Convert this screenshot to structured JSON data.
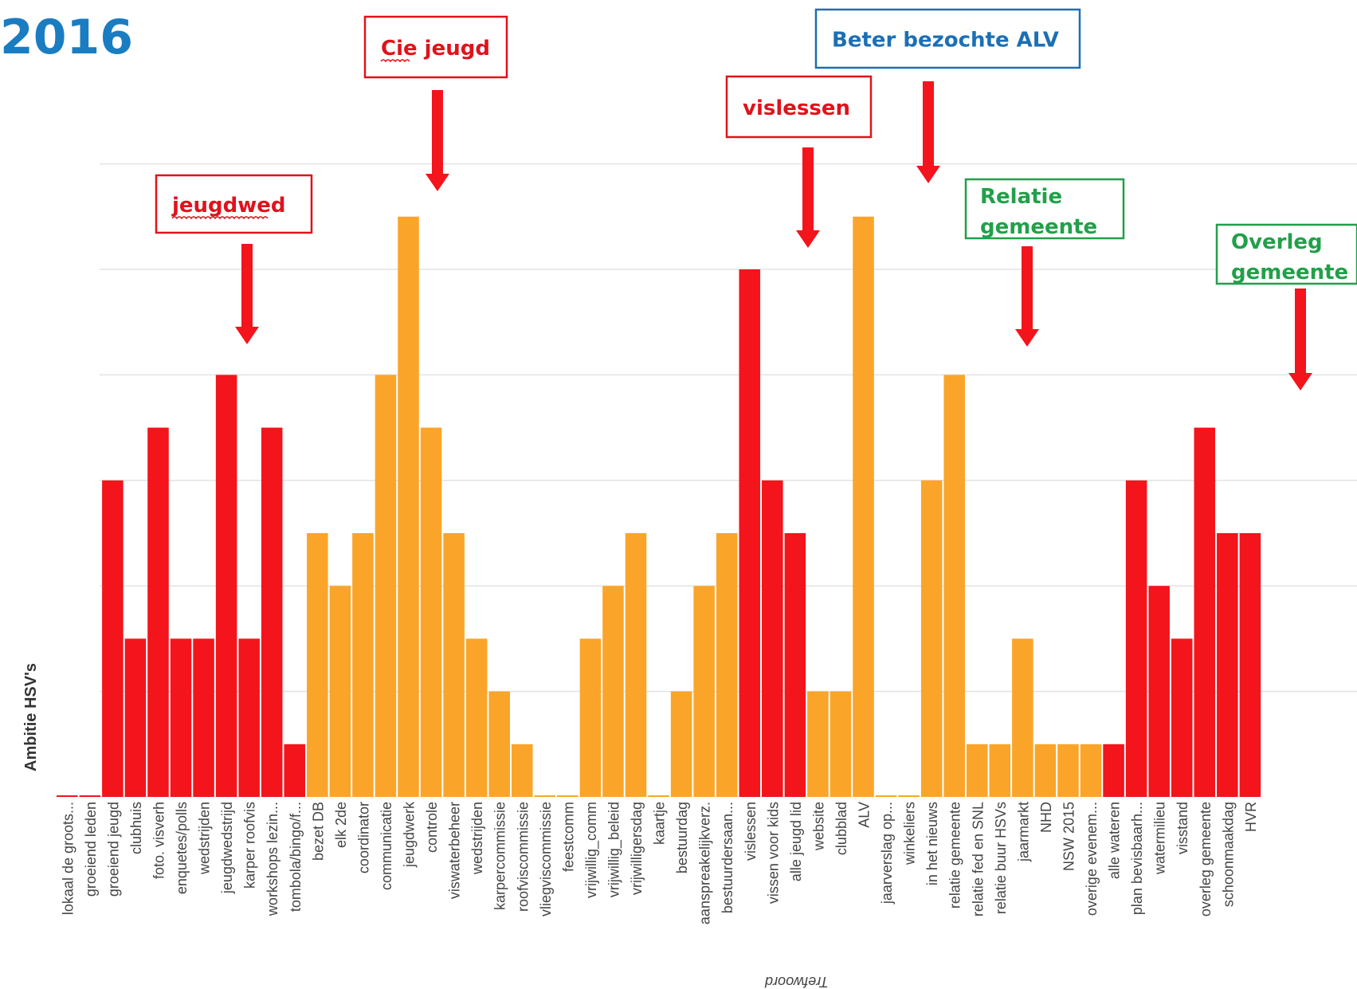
{
  "colors": {
    "red": "#f4141c",
    "orange": "#faa52a",
    "grid": "#e3e3e3",
    "year": "#1a7cc1",
    "callout_red": "#e0121c",
    "callout_blue": "#1c6fb4",
    "callout_green": "#21a04a"
  },
  "year_label": "2016",
  "callouts": [
    {
      "text": "jeugdwed",
      "color": "red",
      "squiggle": true
    },
    {
      "text": "Cie jeugd",
      "color": "red",
      "squiggle": true
    },
    {
      "text": "vislessen",
      "color": "red",
      "squiggle": false
    },
    {
      "text": "Beter bezochte ALV",
      "color": "blue",
      "squiggle": false
    },
    {
      "text": "Relatie gemeente",
      "color": "green",
      "squiggle": false
    },
    {
      "text": "Overleg gemeente",
      "color": "green",
      "squiggle": false
    }
  ],
  "chart_data": {
    "type": "bar",
    "title": "",
    "xlabel": "Trefwoord",
    "ylabel": "Ambitie HSV's",
    "ylim": [
      0,
      13
    ],
    "grid": true,
    "categories": [
      "lokaal de groots...",
      "groeiend leden",
      "groeiend jeugd",
      "clubhuis",
      "foto. visverh",
      "enquetes/polls",
      "wedstrijden",
      "jeugdwedstrijd",
      "karper roofvis",
      "workshops lezin...",
      "tombola/bingo/f...",
      "bezet DB",
      "elk 2de",
      "coordinator",
      "communicatie",
      "jeugdwerk",
      "controle",
      "viswaterbeheer",
      "wedstrijden",
      "karpercommissie",
      "roofviscommissie",
      "vliegviscommissie",
      "feestcomm",
      "vrijwillig_comm",
      "vrijwillig_beleid",
      "vrijwilligersdag",
      "kaartje",
      "bestuurdag",
      "aanspreakelijkverz.",
      "bestuurdersaan...",
      "vislessen",
      "vissen voor kids",
      "alle jeugd lid",
      "website",
      "clubblad",
      "ALV",
      "jaarverslag op...",
      "winkeliers",
      "in het nieuws",
      "relatie gemeente",
      "relatie fed en SNL",
      "relatie buur HSVs",
      "jaarmarkt",
      "NHD",
      "NSW 2015",
      "overige evenem...",
      "alle wateren",
      "plan bevisbaarh...",
      "watermilieu",
      "visstand",
      "overleg gemeente",
      "schoonmaakdag",
      "HVR"
    ],
    "values": [
      0,
      0,
      6,
      3,
      7,
      3,
      3,
      8,
      3,
      7,
      1,
      5,
      4,
      5,
      8,
      11,
      7,
      5,
      3,
      2,
      1,
      0,
      0,
      3,
      4,
      5,
      0,
      2,
      4,
      5,
      10,
      6,
      5,
      2,
      2,
      11,
      0,
      0,
      6,
      8,
      1,
      1,
      3,
      1,
      1,
      1,
      1,
      6,
      4,
      3,
      7,
      5,
      5
    ],
    "bar_colors": [
      "red",
      "red",
      "red",
      "red",
      "red",
      "red",
      "red",
      "red",
      "red",
      "red",
      "red",
      "orange",
      "orange",
      "orange",
      "orange",
      "orange",
      "orange",
      "orange",
      "orange",
      "orange",
      "orange",
      "orange",
      "orange",
      "orange",
      "orange",
      "orange",
      "orange",
      "orange",
      "orange",
      "orange",
      "red",
      "red",
      "red",
      "orange",
      "orange",
      "orange",
      "orange",
      "orange",
      "orange",
      "orange",
      "orange",
      "orange",
      "orange",
      "orange",
      "orange",
      "orange",
      "red",
      "red",
      "red",
      "red",
      "red",
      "red",
      "red"
    ]
  }
}
